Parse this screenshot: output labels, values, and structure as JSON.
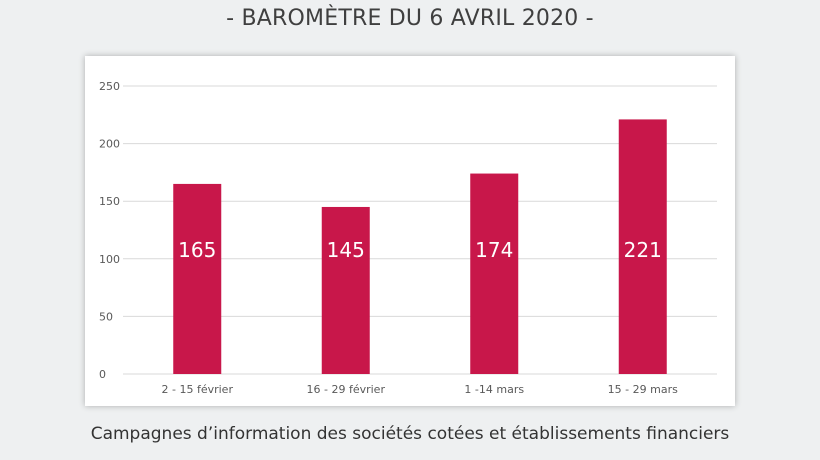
{
  "header": {
    "title": "- BAROMÈTRE DU 6 AVRIL 2020 -"
  },
  "footer": {
    "caption": "Campagnes d’information des sociétés cotées et établissements financiers"
  },
  "colors": {
    "bar": "#c8174a",
    "grid": "#d9d9d9",
    "axis_text": "#595959",
    "label_text": "#ffffff"
  },
  "chart_data": {
    "type": "bar",
    "categories": [
      "2 - 15 février",
      "16 - 29 février",
      "1 -14 mars",
      "15 - 29 mars"
    ],
    "values": [
      165,
      145,
      174,
      221
    ],
    "yticks": [
      0,
      50,
      100,
      150,
      200,
      250
    ],
    "ylim": [
      0,
      250
    ],
    "grid": true
  }
}
